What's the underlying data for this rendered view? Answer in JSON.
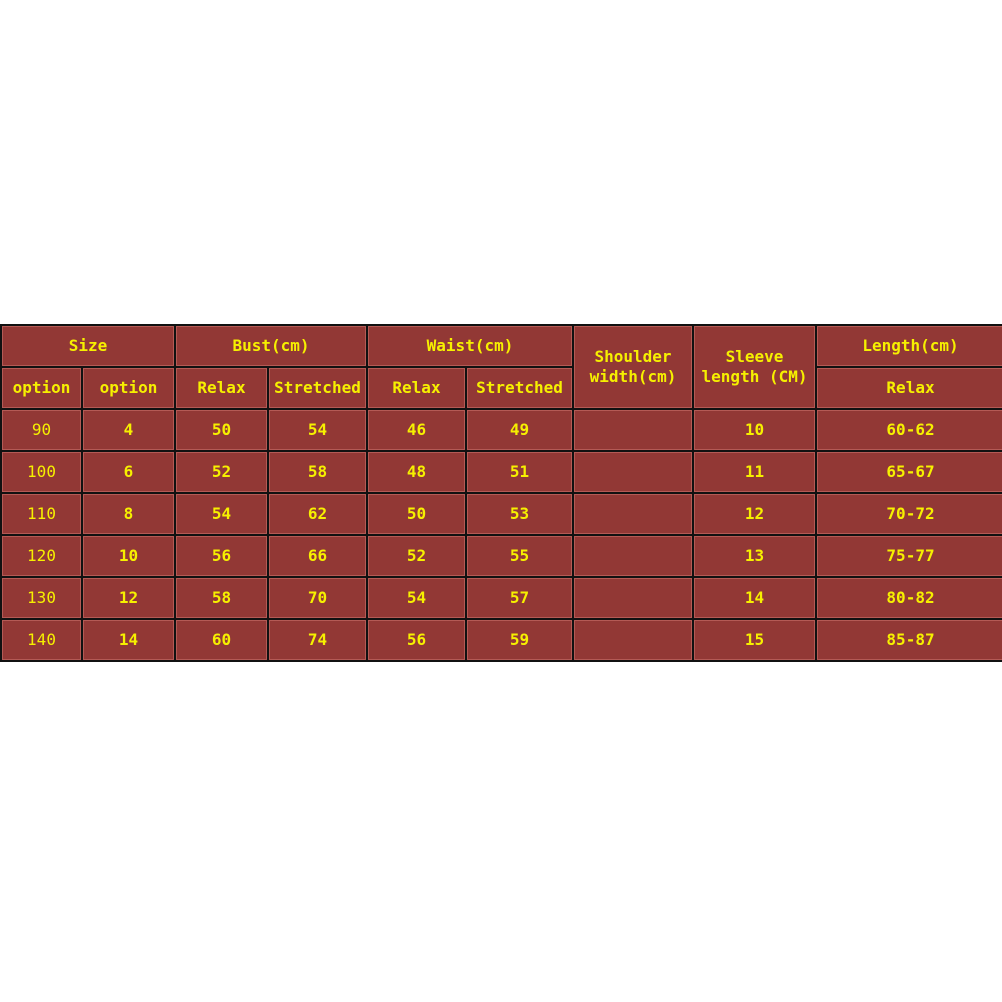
{
  "header": {
    "size": "Size",
    "bust": "Bust(cm)",
    "waist": "Waist(cm)",
    "shoulder": "Shoulder width(cm)",
    "sleeve": "Sleeve length (CM)",
    "length": "Length(cm)",
    "sub": [
      "option",
      "option",
      "Relax",
      "Stretched",
      "Relax",
      "Stretched",
      "Relax"
    ]
  },
  "colors": {
    "background": "#923835",
    "text": "#f6f000",
    "border": "#111111"
  },
  "rows": [
    [
      "90",
      "4",
      "50",
      "54",
      "46",
      "49",
      "",
      "10",
      "60-62"
    ],
    [
      "100",
      "6",
      "52",
      "58",
      "48",
      "51",
      "",
      "11",
      "65-67"
    ],
    [
      "110",
      "8",
      "54",
      "62",
      "50",
      "53",
      "",
      "12",
      "70-72"
    ],
    [
      "120",
      "10",
      "56",
      "66",
      "52",
      "55",
      "",
      "13",
      "75-77"
    ],
    [
      "130",
      "12",
      "58",
      "70",
      "54",
      "57",
      "",
      "14",
      "80-82"
    ],
    [
      "140",
      "14",
      "60",
      "74",
      "56",
      "59",
      "",
      "15",
      "85-87"
    ]
  ]
}
